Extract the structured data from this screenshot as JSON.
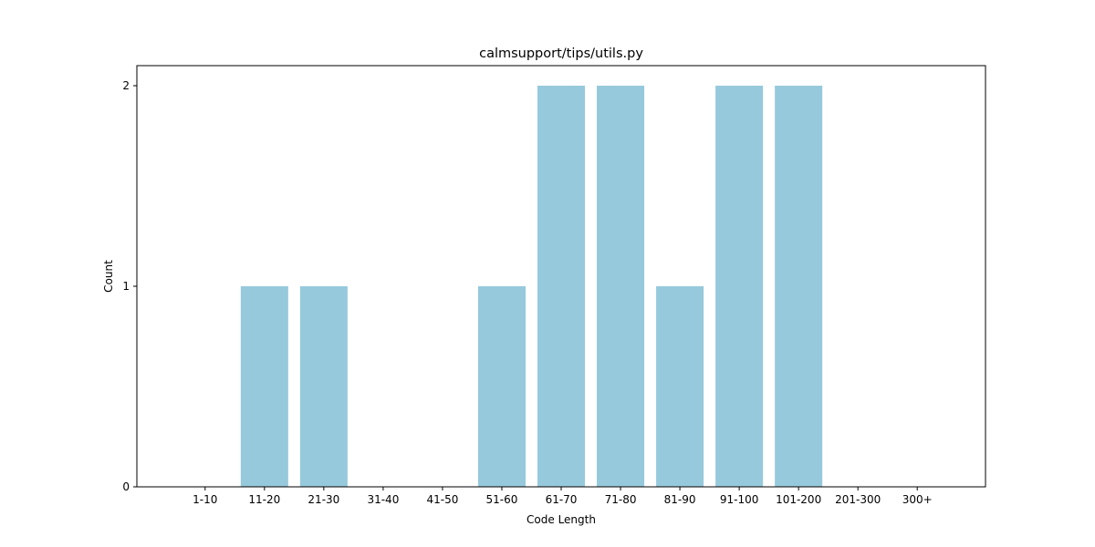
{
  "chart_data": {
    "type": "bar",
    "title": "calmsupport/tips/utils.py",
    "xlabel": "Code Length",
    "ylabel": "Count",
    "categories": [
      "1-10",
      "11-20",
      "21-30",
      "31-40",
      "41-50",
      "51-60",
      "61-70",
      "71-80",
      "81-90",
      "91-100",
      "101-200",
      "201-300",
      "300+"
    ],
    "values": [
      0,
      1,
      1,
      0,
      0,
      1,
      2,
      2,
      1,
      2,
      2,
      0,
      0
    ],
    "ylim": [
      0,
      2.1
    ],
    "yticks": [
      0,
      1,
      2
    ],
    "bar_color": "#96c9dc",
    "grid": false,
    "legend": "none"
  }
}
